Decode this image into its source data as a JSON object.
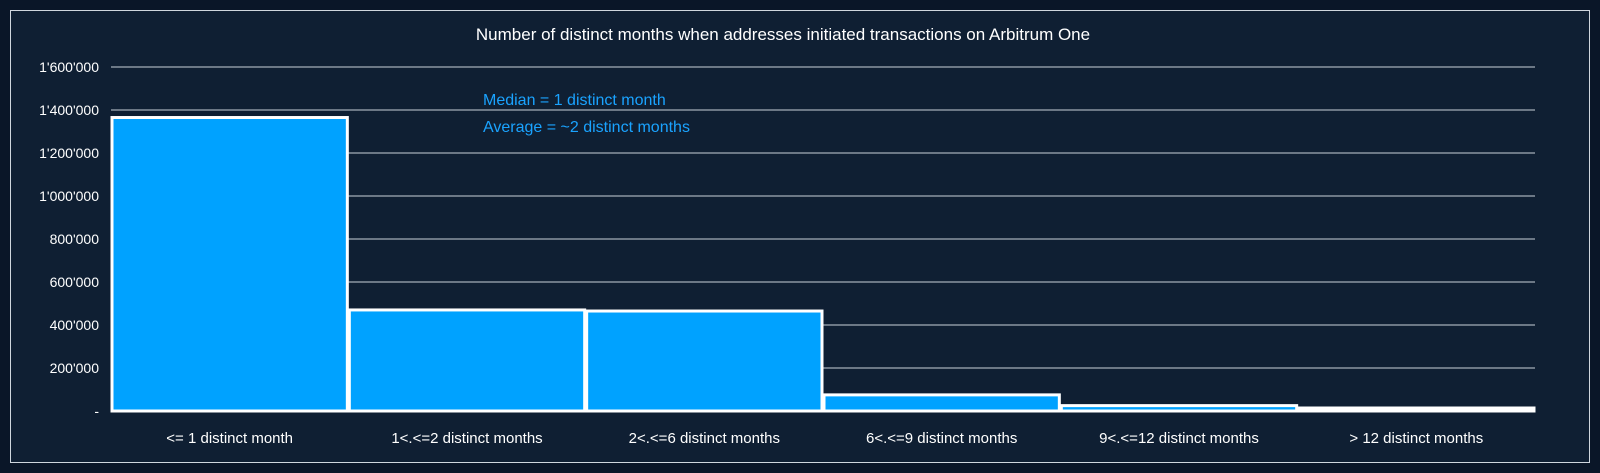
{
  "chart_data": {
    "type": "bar",
    "title": "Number of distinct months when addresses initiated transactions on Arbitrum One",
    "xlabel": "",
    "ylabel": "",
    "categories": [
      "<= 1 distinct month",
      "1<.<=2 distinct months",
      "2<.<=6 distinct months",
      "6<.<=9 distinct months",
      "9<.<=12 distinct months",
      "> 12 distinct months"
    ],
    "values": [
      1365000,
      470000,
      465000,
      75000,
      25000,
      10000
    ],
    "ylim": [
      0,
      1600000
    ],
    "yticks": [
      0,
      200000,
      400000,
      600000,
      800000,
      1000000,
      1200000,
      1400000,
      1600000
    ],
    "ytick_labels": [
      "-",
      "200'000",
      "400'000",
      "600'000",
      "800'000",
      "1'000'000",
      "1'200'000",
      "1'400'000",
      "1'600'000"
    ],
    "grid": true,
    "annotations": [
      "Median = 1 distinct month",
      "Average = ~2 distinct months"
    ],
    "colors": {
      "bar": "#00a2ff",
      "bar_edge": "#ffffff",
      "annotation": "#1aa3ff",
      "grid": "#c8d0da",
      "background": "#0f1f33"
    }
  }
}
